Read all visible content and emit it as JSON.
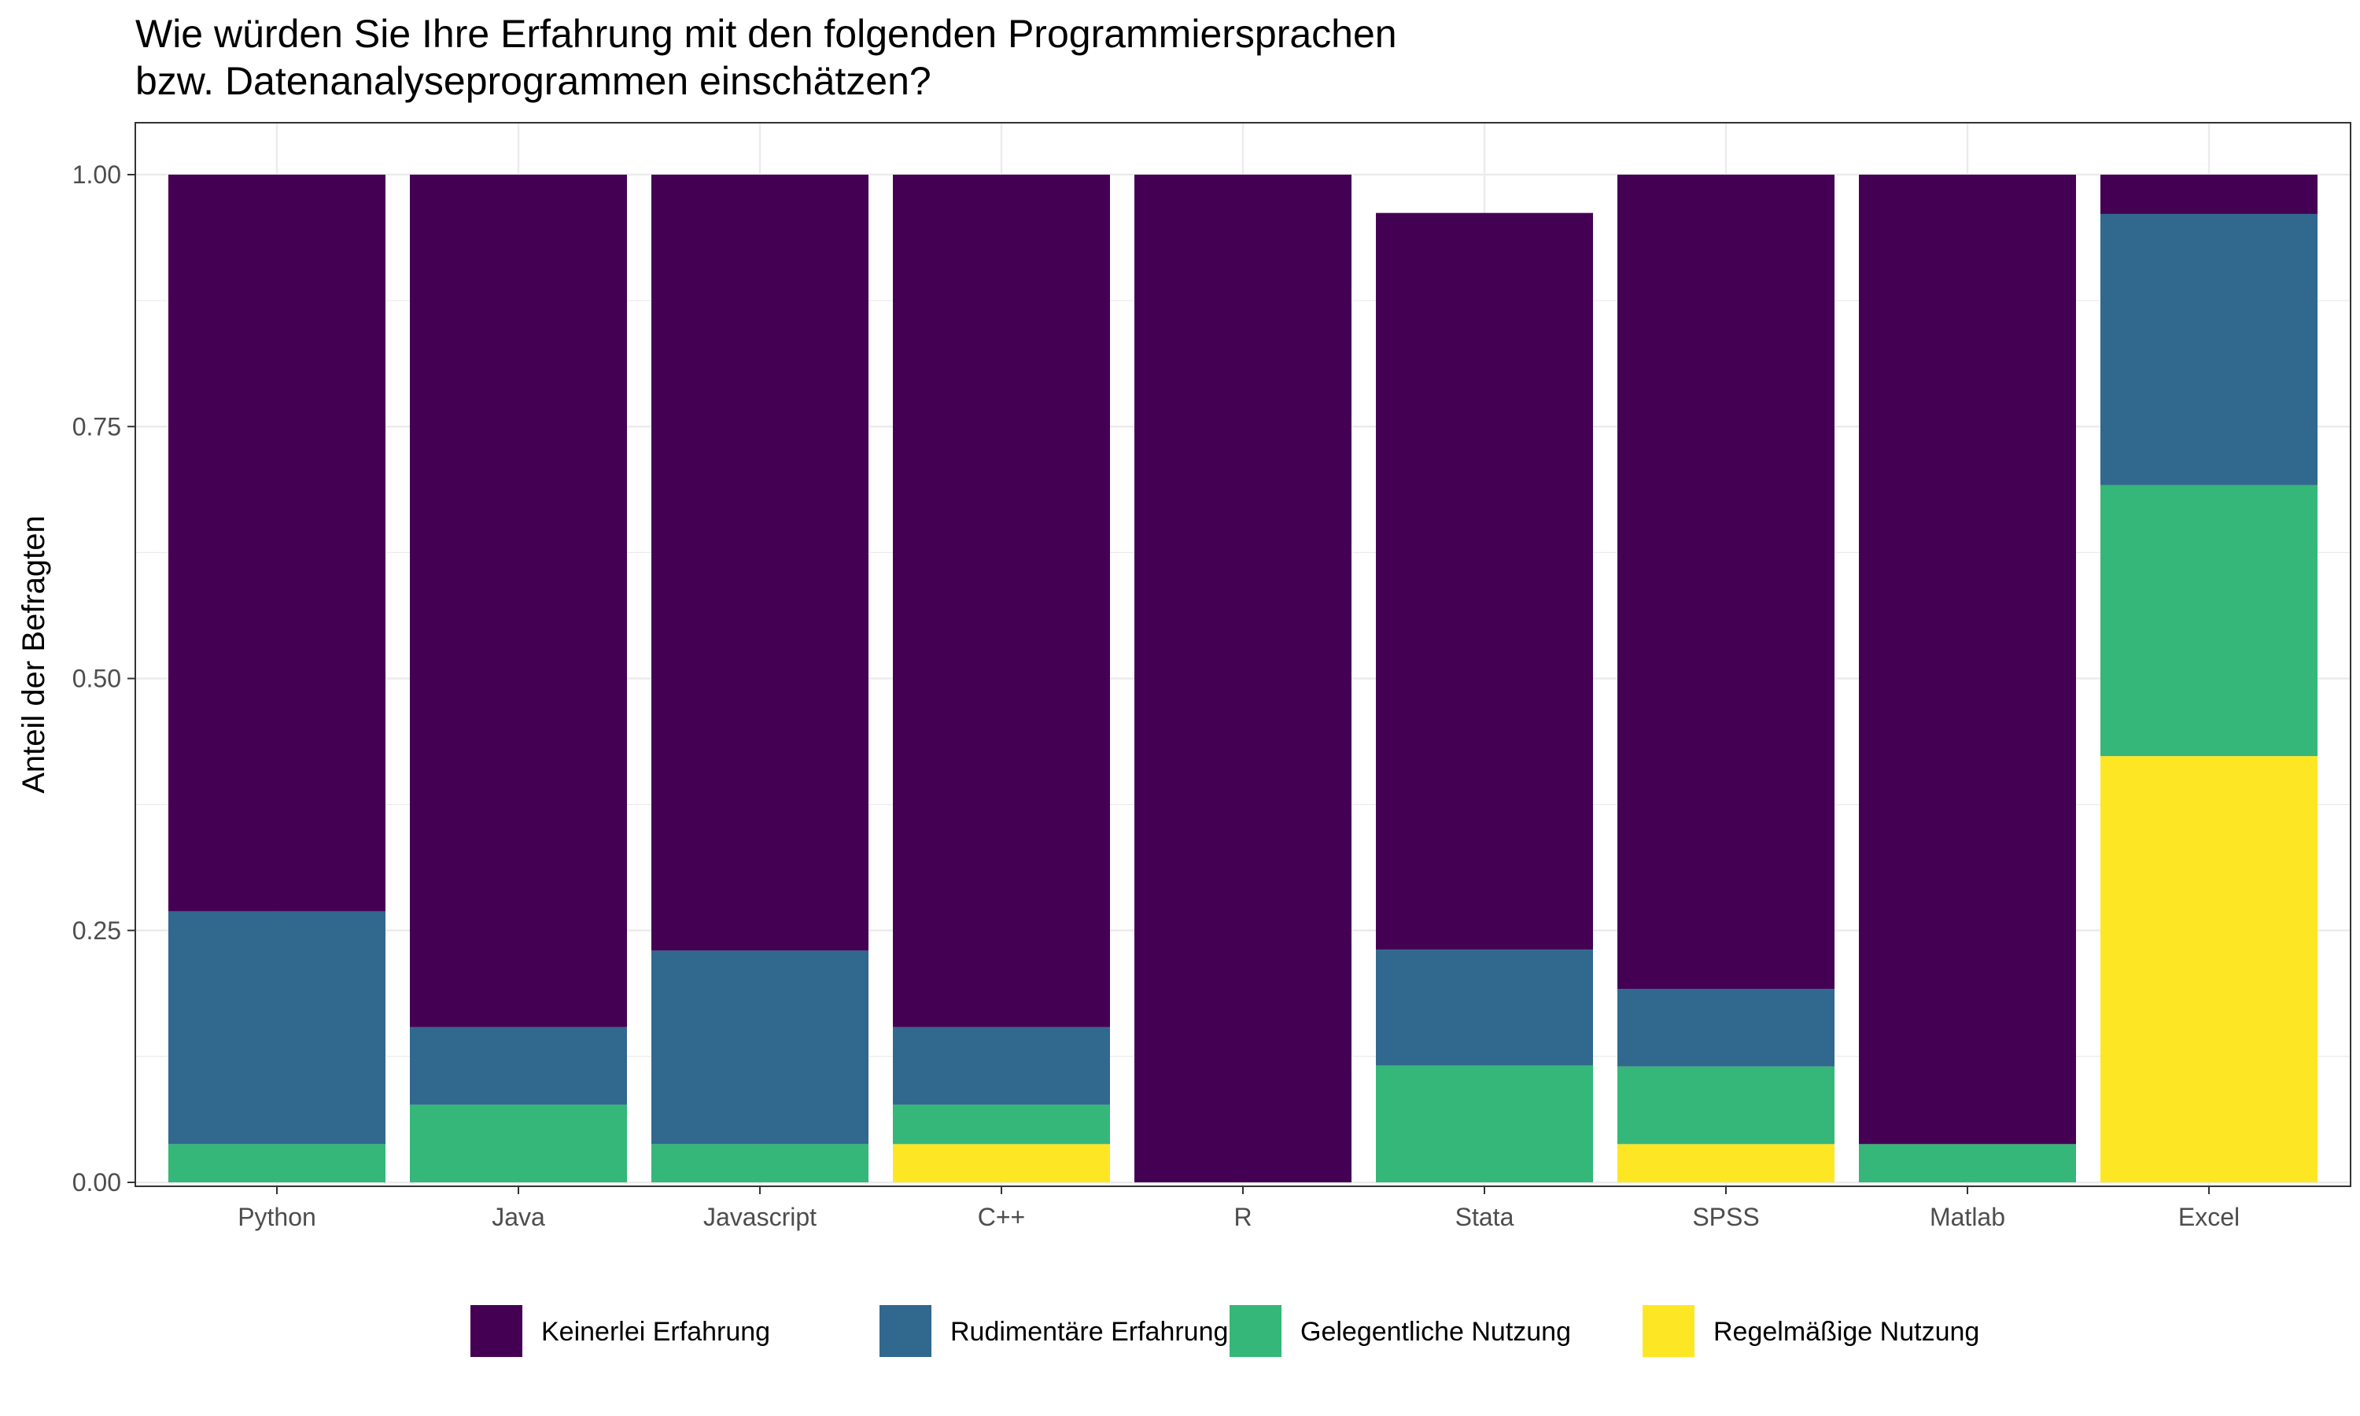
{
  "chart_data": {
    "type": "bar",
    "stacked": true,
    "title_lines": [
      "Wie würden Sie Ihre Erfahrung mit den folgenden Programmiersprachen",
      "bzw. Datenanalyseprogrammen einschätzen?"
    ],
    "xlabel": "",
    "ylabel": "Anteil der Befragten",
    "ylim": [
      0,
      1
    ],
    "yticks": [
      "0.00",
      "0.25",
      "0.50",
      "0.75",
      "1.00"
    ],
    "grid": true,
    "legend_position": "bottom",
    "categories": [
      "Python",
      "Java",
      "Javascript",
      "C++",
      "R",
      "Stata",
      "SPSS",
      "Matlab",
      "Excel"
    ],
    "series": [
      {
        "name": "Regelmäßige Nutzung",
        "color": "#fde725",
        "values": [
          0,
          0,
          0,
          0.038,
          0,
          0,
          0.038,
          0,
          0.423
        ]
      },
      {
        "name": "Gelegentliche Nutzung",
        "color": "#35b779",
        "values": [
          0.038,
          0.077,
          0.038,
          0.039,
          0,
          0.116,
          0.077,
          0.038,
          0.269
        ]
      },
      {
        "name": "Rudimentäre Erfahrung",
        "color": "#31688e",
        "values": [
          0.231,
          0.077,
          0.192,
          0.077,
          0,
          0.115,
          0.077,
          0,
          0.269
        ]
      },
      {
        "name": "Keinerlei Erfahrung",
        "color": "#440154",
        "values": [
          0.731,
          0.846,
          0.77,
          0.846,
          1.0,
          0.731,
          0.808,
          0.962,
          0.039
        ]
      }
    ],
    "legend_order": [
      "Keinerlei Erfahrung",
      "Rudimentäre Erfahrung",
      "Gelegentliche Nutzung",
      "Regelmäßige Nutzung"
    ]
  }
}
